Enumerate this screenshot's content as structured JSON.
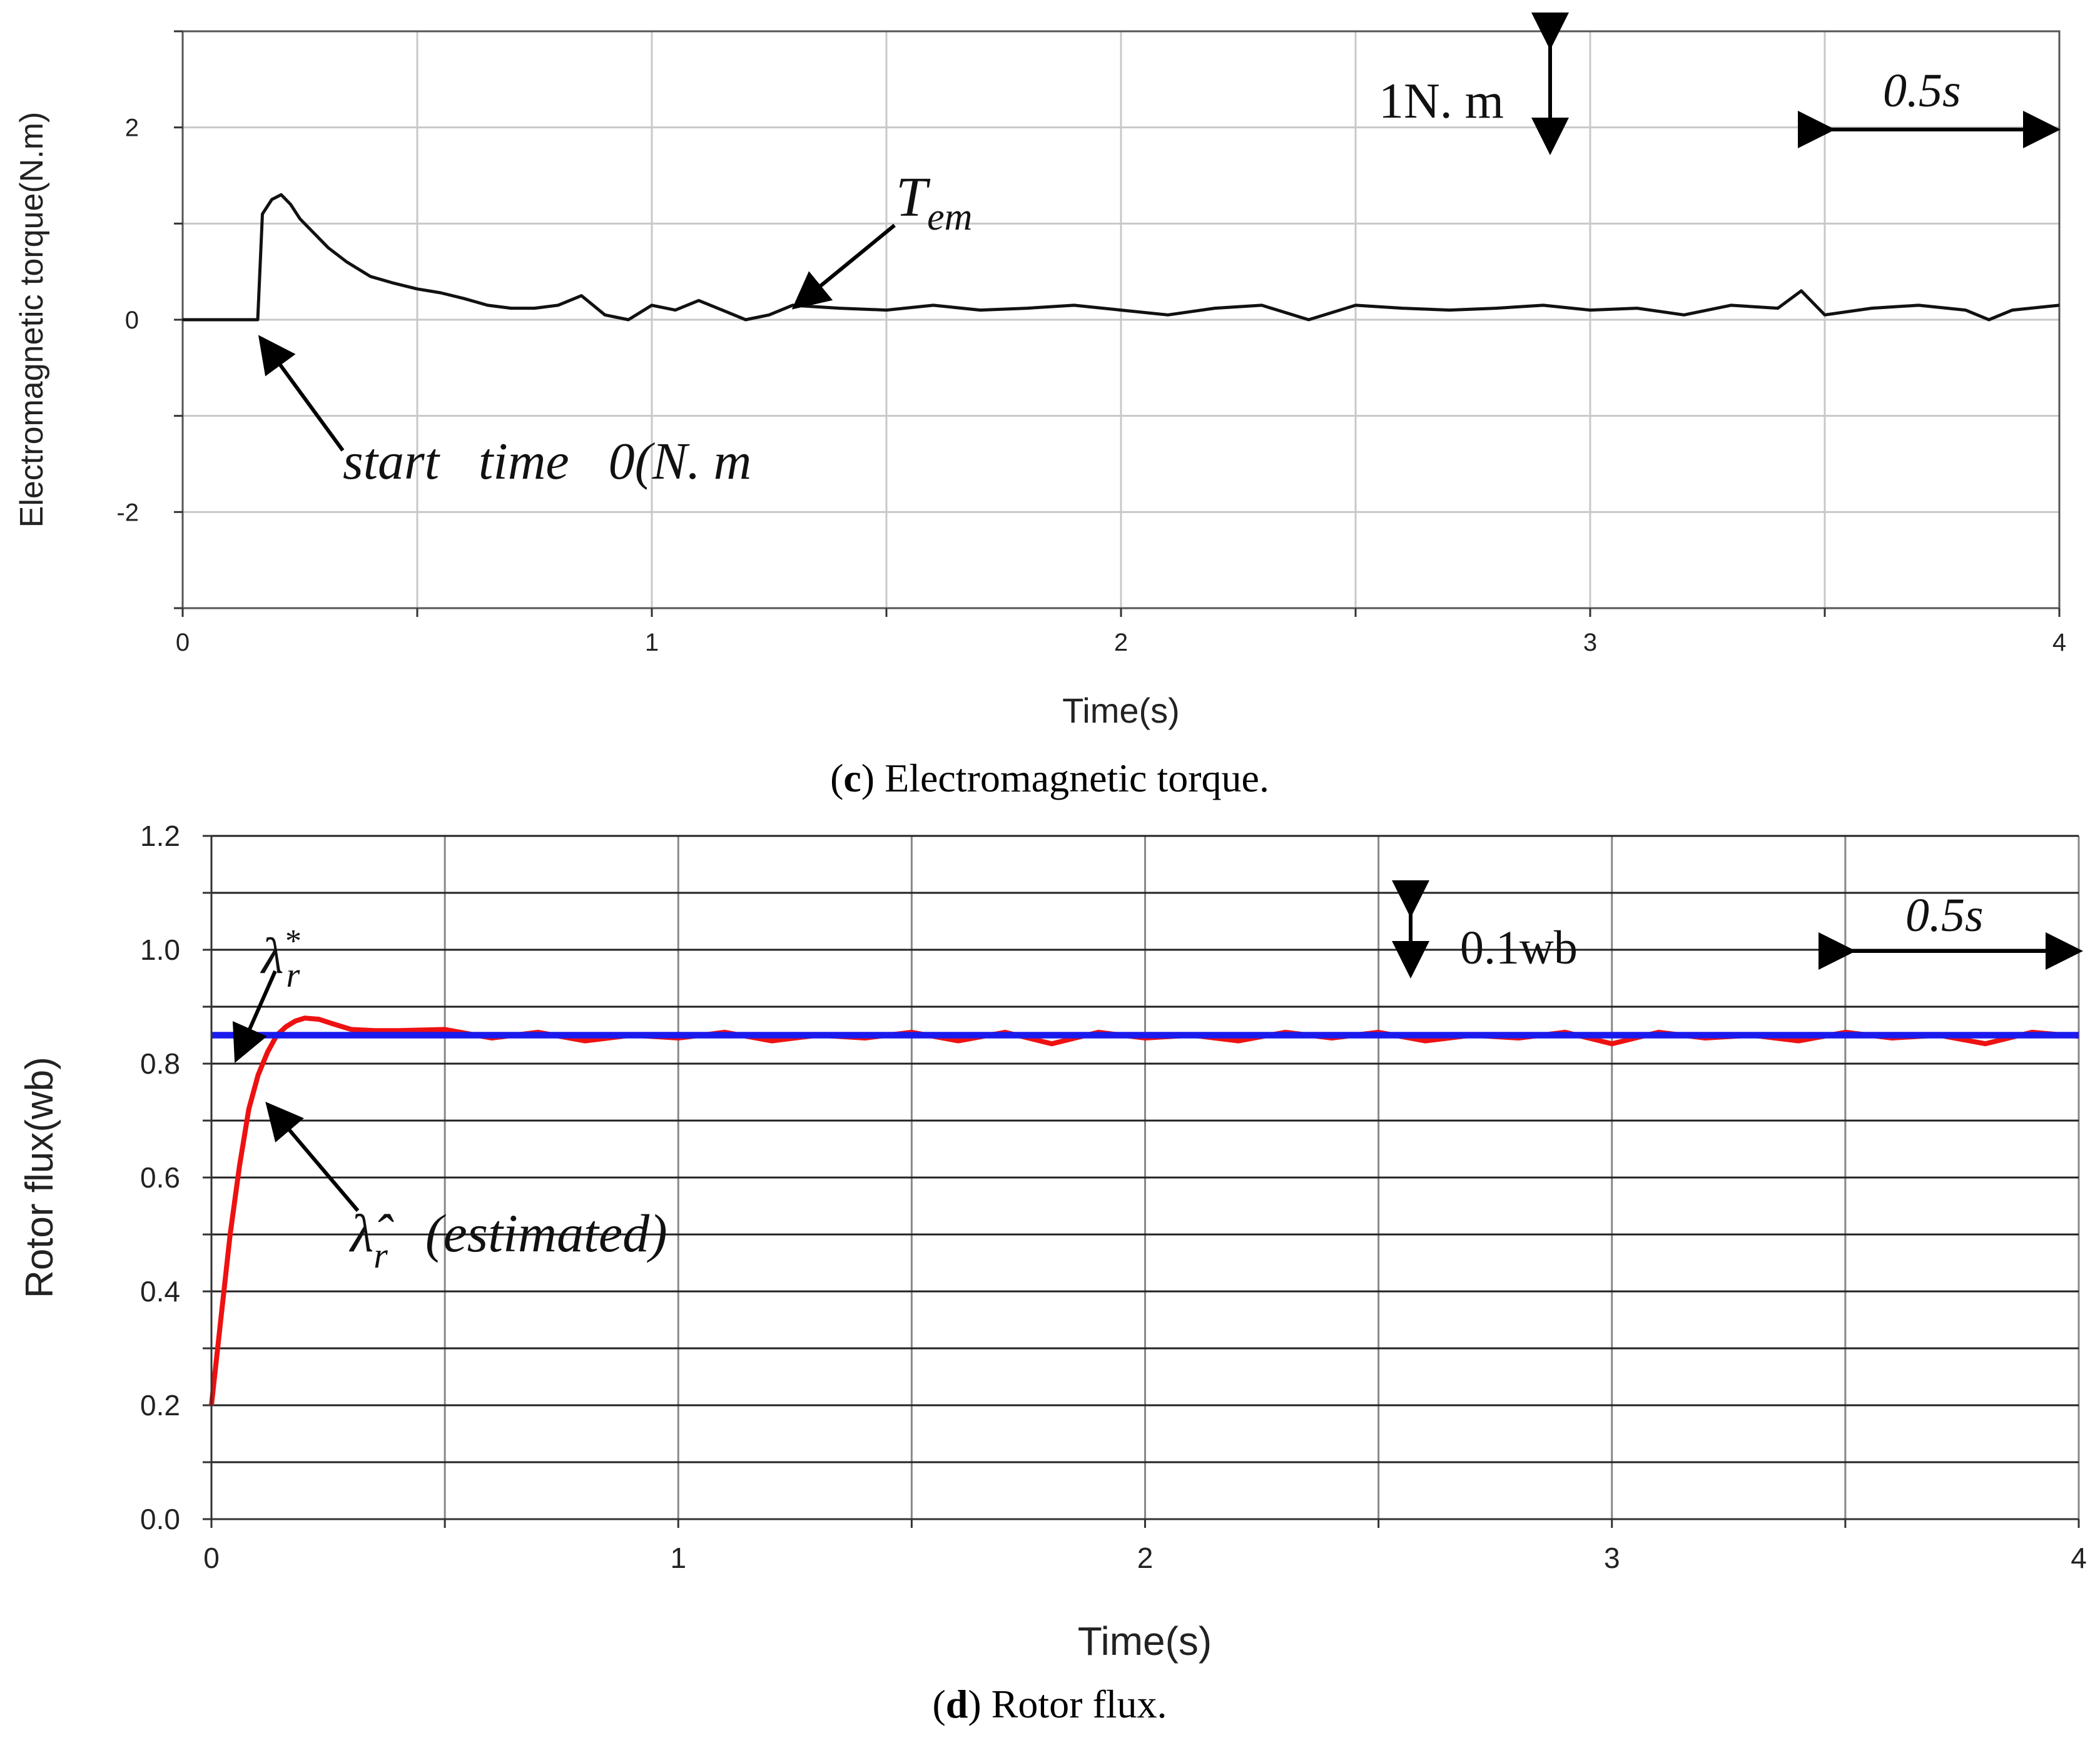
{
  "chart_data": [
    {
      "id": "torque",
      "type": "line",
      "caption_letter": "c",
      "caption_text": ") Electromagnetic torque.",
      "xlabel": "Time(s)",
      "ylabel": "Electromagnetic torque(N.m)",
      "xlim": [
        0,
        4
      ],
      "ylim": [
        -3,
        3
      ],
      "xticks": [
        0,
        1,
        2,
        3,
        4
      ],
      "xtick_labels": [
        "0",
        "1",
        "2",
        "3",
        "4"
      ],
      "yticks": [
        -2,
        0,
        2
      ],
      "ytick_labels": [
        "-2",
        "0",
        "2"
      ],
      "grid": true,
      "series": [
        {
          "name": "Tem",
          "color": "#111111",
          "x": [
            0,
            0.05,
            0.1,
            0.15,
            0.16,
            0.17,
            0.19,
            0.21,
            0.23,
            0.25,
            0.28,
            0.31,
            0.35,
            0.4,
            0.45,
            0.5,
            0.55,
            0.6,
            0.65,
            0.7,
            0.75,
            0.8,
            0.85,
            0.9,
            0.95,
            1.0,
            1.05,
            1.1,
            1.15,
            1.2,
            1.25,
            1.3,
            1.4,
            1.5,
            1.6,
            1.7,
            1.8,
            1.9,
            2.0,
            2.1,
            2.2,
            2.3,
            2.4,
            2.5,
            2.6,
            2.7,
            2.8,
            2.9,
            3.0,
            3.1,
            3.2,
            3.3,
            3.4,
            3.45,
            3.5,
            3.6,
            3.7,
            3.8,
            3.85,
            3.9,
            4.0
          ],
          "y": [
            0,
            0,
            0,
            0,
            0,
            1.1,
            1.25,
            1.3,
            1.2,
            1.05,
            0.9,
            0.75,
            0.6,
            0.45,
            0.38,
            0.32,
            0.28,
            0.22,
            0.15,
            0.12,
            0.12,
            0.15,
            0.25,
            0.05,
            0.0,
            0.15,
            0.1,
            0.2,
            0.1,
            0.0,
            0.05,
            0.15,
            0.12,
            0.1,
            0.15,
            0.1,
            0.12,
            0.15,
            0.1,
            0.05,
            0.12,
            0.15,
            0.0,
            0.15,
            0.12,
            0.1,
            0.12,
            0.15,
            0.1,
            0.12,
            0.05,
            0.15,
            0.12,
            0.3,
            0.05,
            0.12,
            0.15,
            0.1,
            0.0,
            0.1,
            0.15
          ]
        }
      ],
      "annotations": {
        "scale_y": "1N. m",
        "scale_x": "0.5s",
        "signal_main": "T",
        "signal_sub": "em",
        "start_note": "start   time   0(N. m"
      }
    },
    {
      "id": "flux",
      "type": "line",
      "caption_letter": "d",
      "caption_text": ") Rotor flux.",
      "xlabel": "Time(s)",
      "ylabel": "Rotor flux(wb)",
      "xlim": [
        0,
        4
      ],
      "ylim": [
        0.0,
        1.2
      ],
      "xticks": [
        0,
        1,
        2,
        3,
        4
      ],
      "xtick_labels": [
        "0",
        "1",
        "2",
        "3",
        "4"
      ],
      "yticks": [
        0.0,
        0.2,
        0.4,
        0.6,
        0.8,
        1.0,
        1.2
      ],
      "ytick_labels": [
        "0.0",
        "0.2",
        "0.4",
        "0.6",
        "0.8",
        "1.0",
        "1.2"
      ],
      "grid": true,
      "series": [
        {
          "name": "estimated",
          "color": "#ee1111",
          "x": [
            0,
            0.02,
            0.04,
            0.06,
            0.08,
            0.1,
            0.12,
            0.14,
            0.16,
            0.18,
            0.2,
            0.23,
            0.26,
            0.3,
            0.35,
            0.4,
            0.5,
            0.6,
            0.7,
            0.8,
            0.9,
            1.0,
            1.1,
            1.2,
            1.3,
            1.4,
            1.5,
            1.6,
            1.7,
            1.8,
            1.9,
            2.0,
            2.1,
            2.2,
            2.3,
            2.4,
            2.5,
            2.6,
            2.7,
            2.8,
            2.9,
            3.0,
            3.1,
            3.2,
            3.3,
            3.4,
            3.5,
            3.6,
            3.7,
            3.8,
            3.9,
            4.0
          ],
          "y": [
            0.2,
            0.35,
            0.5,
            0.62,
            0.72,
            0.78,
            0.82,
            0.85,
            0.865,
            0.875,
            0.88,
            0.878,
            0.87,
            0.86,
            0.858,
            0.858,
            0.86,
            0.845,
            0.855,
            0.84,
            0.85,
            0.845,
            0.855,
            0.84,
            0.85,
            0.845,
            0.855,
            0.84,
            0.855,
            0.835,
            0.855,
            0.845,
            0.85,
            0.84,
            0.855,
            0.845,
            0.855,
            0.84,
            0.85,
            0.845,
            0.855,
            0.835,
            0.855,
            0.845,
            0.85,
            0.84,
            0.855,
            0.845,
            0.85,
            0.835,
            0.855,
            0.848
          ]
        },
        {
          "name": "reference",
          "color": "#1a1aee",
          "x": [
            0,
            4
          ],
          "y": [
            0.85,
            0.85
          ]
        }
      ],
      "annotations": {
        "scale_y": "0.1wb",
        "scale_x": "0.5s",
        "ref_symbol": "λ",
        "ref_sub": "r",
        "ref_sup": "*",
        "est_symbol": "λ̂",
        "est_sub": "r",
        "est_note": "(estimated)"
      }
    }
  ]
}
